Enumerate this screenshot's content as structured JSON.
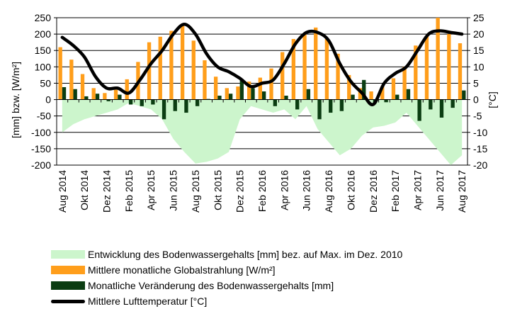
{
  "chart_data": {
    "type": "bar",
    "categories": [
      "Aug 2014",
      "Sep 2014",
      "Okt 2014",
      "Nov 2014",
      "Dez 2014",
      "Jan 2015",
      "Feb 2015",
      "Mrz 2015",
      "Apr 2015",
      "Mai 2015",
      "Jun 2015",
      "Jul 2015",
      "Aug 2015",
      "Sep 2015",
      "Okt 2015",
      "Nov 2015",
      "Dez 2015",
      "Jan 2016",
      "Feb 2016",
      "Mrz 2016",
      "Apr 2016",
      "Mai 2016",
      "Jun 2016",
      "Jul 2016",
      "Aug 2016",
      "Sep 2016",
      "Okt 2016",
      "Nov 2016",
      "Dez 2016",
      "Jan 2017",
      "Feb 2017",
      "Mrz 2017",
      "Apr 2017",
      "Mai 2017",
      "Jun 2017",
      "Jul 2017",
      "Aug 2017"
    ],
    "x_tick_labels": [
      "Aug 2014",
      "Okt 2014",
      "Dez 2014",
      "Feb 2015",
      "Apr 2015",
      "Jun 2015",
      "Aug 2015",
      "Okt 2015",
      "Dez 2015",
      "Feb 2016",
      "Apr 2016",
      "Jun 2016",
      "Aug 2016",
      "Okt 2016",
      "Dez 2016",
      "Feb 2017",
      "Apr 2017",
      "Jun 2017",
      "Aug 2017"
    ],
    "series": [
      {
        "name": "Entwicklung des Bodenwassergehalts [mm] bez. auf Max. im Dez. 2010",
        "type": "area",
        "axis": "left",
        "color": "#ccf5cc",
        "values": [
          -100,
          -75,
          -60,
          -50,
          -40,
          -30,
          -10,
          -20,
          -30,
          -60,
          -120,
          -160,
          -195,
          -190,
          -180,
          -160,
          -60,
          -20,
          -30,
          -40,
          -30,
          -60,
          -20,
          -90,
          -130,
          -170,
          -150,
          -110,
          -85,
          -80,
          -70,
          -40,
          -80,
          -120,
          -160,
          -200,
          -170
        ]
      },
      {
        "name": "Mittlere monatliche Globalstrahlung [W/m²]",
        "type": "bar",
        "axis": "left",
        "color": "#ff9e1b",
        "values": [
          160,
          122,
          78,
          35,
          20,
          30,
          62,
          115,
          175,
          192,
          210,
          225,
          180,
          120,
          70,
          35,
          40,
          55,
          67,
          95,
          145,
          185,
          200,
          220,
          185,
          140,
          75,
          35,
          25,
          40,
          65,
          100,
          165,
          195,
          250,
          200,
          172
        ]
      },
      {
        "name": "Monatliche Veränderung des Bodenwassergehalts [mm]",
        "type": "bar",
        "axis": "left",
        "color": "#0b3d12",
        "values": [
          38,
          32,
          10,
          18,
          -5,
          15,
          -15,
          -20,
          -15,
          -60,
          -35,
          -40,
          -20,
          2,
          12,
          18,
          60,
          35,
          25,
          -20,
          12,
          -30,
          32,
          -60,
          -40,
          -35,
          15,
          60,
          -10,
          -8,
          15,
          32,
          -65,
          -30,
          -55,
          -25,
          28
        ]
      },
      {
        "name": "Mittlere Lufttemperatur [°C]",
        "type": "line",
        "axis": "right",
        "color": "#000000",
        "values": [
          19,
          16.5,
          13,
          7,
          3.5,
          3.5,
          2,
          6,
          11,
          15,
          20,
          23,
          20,
          14,
          10,
          8.5,
          6.5,
          4,
          5,
          6,
          11,
          17,
          20.5,
          20.5,
          18,
          11,
          5.5,
          2,
          -1.5,
          5,
          8,
          10,
          15,
          20,
          21,
          20.5,
          20
        ]
      }
    ],
    "y_left": {
      "min": -200,
      "max": 250,
      "step": 50,
      "ticks": [
        "250",
        "200",
        "150",
        "100",
        "50",
        "0",
        "-50",
        "-100",
        "-150",
        "-200"
      ],
      "label": "[mm] bzw. [W/m²]"
    },
    "y_right": {
      "min": -20,
      "max": 25,
      "step": 5,
      "ticks": [
        "25",
        "20",
        "15",
        "10",
        "5",
        "0",
        "-5",
        "-10",
        "-15",
        "-20"
      ],
      "label": "[°C]"
    },
    "grid": "horizontal",
    "legend_position": "bottom"
  },
  "legend": {
    "item0": "Entwicklung des Bodenwassergehalts [mm] bez. auf Max. im Dez. 2010",
    "item1": "Mittlere monatliche Globalstrahlung [W/m²]",
    "item2": "Monatliche Veränderung des Bodenwassergehalts [mm]",
    "item3": "Mittlere Lufttemperatur [°C]"
  }
}
